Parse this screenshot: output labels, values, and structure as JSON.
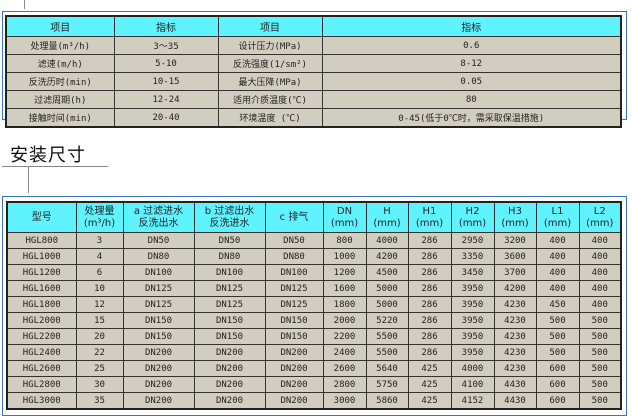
{
  "spec_table": {
    "headers": [
      "项目",
      "指标",
      "项目",
      "指标"
    ],
    "rows": [
      [
        "处理量(m³/h)",
        "3～35",
        "设计压力(MPa)",
        "0.6"
      ],
      [
        "滤速(m/h)",
        "5-10",
        "反洗强度(1/sm²)",
        "8-12"
      ],
      [
        "反洗历时(min)",
        "10-15",
        "最大压降(MPa)",
        "0.05"
      ],
      [
        "过滤周期(h)",
        "12-24",
        "适用介质温度(℃)",
        "80"
      ],
      [
        "接触时间(min)",
        "20-40",
        "环境温度 (℃)",
        "0-45(低于0℃时，需采取保温措施)"
      ]
    ]
  },
  "section_title": "安装尺寸",
  "dimension_table": {
    "headers": [
      [
        "型号"
      ],
      [
        "处理量",
        "(m³/h)"
      ],
      [
        "a 过滤进水",
        "反洗出水"
      ],
      [
        "b 过滤出水",
        "反洗进水"
      ],
      [
        "c 排气"
      ],
      [
        "DN",
        "(mm)"
      ],
      [
        "H",
        "(mm)"
      ],
      [
        "H1",
        "(mm)"
      ],
      [
        "H2",
        "(mm)"
      ],
      [
        "H3",
        "(mm)"
      ],
      [
        "L1",
        "(mm)"
      ],
      [
        "L2",
        "(mm)"
      ]
    ],
    "rows": [
      [
        "HGL800",
        "3",
        "DN50",
        "DN50",
        "DN50",
        "800",
        "4000",
        "286",
        "2950",
        "3200",
        "400",
        "400"
      ],
      [
        "HGL1000",
        "4",
        "DN80",
        "DN80",
        "DN80",
        "1000",
        "4200",
        "286",
        "3350",
        "3600",
        "400",
        "400"
      ],
      [
        "HGL1200",
        "6",
        "DN100",
        "DN100",
        "DN100",
        "1200",
        "4500",
        "286",
        "3450",
        "3700",
        "400",
        "400"
      ],
      [
        "HGL1600",
        "10",
        "DN125",
        "DN125",
        "DN125",
        "1600",
        "5000",
        "286",
        "3950",
        "4200",
        "400",
        "400"
      ],
      [
        "HGL1800",
        "12",
        "DN125",
        "DN125",
        "DN125",
        "1800",
        "5000",
        "286",
        "3950",
        "4230",
        "450",
        "400"
      ],
      [
        "HGL2000",
        "15",
        "DN150",
        "DN150",
        "DN150",
        "2000",
        "5220",
        "286",
        "3950",
        "4230",
        "500",
        "500"
      ],
      [
        "HGL2200",
        "20",
        "DN150",
        "DN150",
        "DN150",
        "2200",
        "5500",
        "286",
        "3950",
        "4230",
        "500",
        "500"
      ],
      [
        "HGL2400",
        "22",
        "DN200",
        "DN200",
        "DN200",
        "2400",
        "5500",
        "286",
        "3950",
        "4230",
        "500",
        "500"
      ],
      [
        "HGL2600",
        "25",
        "DN200",
        "DN200",
        "DN200",
        "2600",
        "5640",
        "425",
        "4000",
        "4230",
        "600",
        "500"
      ],
      [
        "HGL2800",
        "30",
        "DN200",
        "DN200",
        "DN200",
        "2800",
        "5750",
        "425",
        "4100",
        "4430",
        "600",
        "500"
      ],
      [
        "HGL3000",
        "35",
        "DN200",
        "DN200",
        "DN200",
        "3000",
        "5860",
        "425",
        "4152",
        "4430",
        "600",
        "500"
      ]
    ]
  },
  "colors": {
    "header_bg": "#5ff3ff",
    "cell_bg": "#d2cebf",
    "frame": "#3a74c4"
  }
}
